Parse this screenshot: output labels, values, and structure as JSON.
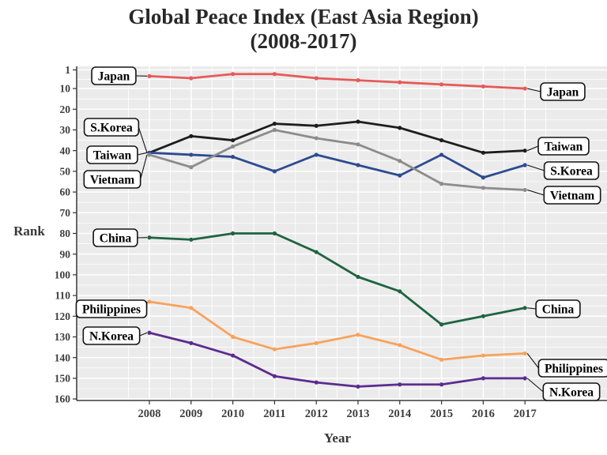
{
  "title": {
    "line1": "Global Peace Index (East Asia Region)",
    "line2": "(2008-2017)"
  },
  "axes": {
    "y_label": "Rank",
    "x_label": "Year",
    "y_ticks": [
      1,
      10,
      20,
      30,
      40,
      50,
      60,
      70,
      80,
      90,
      100,
      110,
      120,
      130,
      140,
      150,
      160
    ],
    "x_ticks": [
      2008,
      2009,
      2010,
      2011,
      2012,
      2013,
      2014,
      2015,
      2016,
      2017
    ]
  },
  "chart_data": {
    "type": "line",
    "title": "Global Peace Index (East Asia Region) (2008-2017)",
    "xlabel": "Year",
    "ylabel": "Rank",
    "x": [
      2008,
      2009,
      2010,
      2011,
      2012,
      2013,
      2014,
      2015,
      2016,
      2017
    ],
    "y_axis_reversed": true,
    "ylim": [
      1,
      160
    ],
    "grid": true,
    "legend": "direct labels in boxes at both ends of each line",
    "series": [
      {
        "name": "Japan",
        "color": "#e65a5a",
        "values": [
          4,
          5,
          3,
          3,
          5,
          6,
          7,
          8,
          9,
          10
        ]
      },
      {
        "name": "Taiwan",
        "color": "#1d1d1d",
        "values": [
          41,
          33,
          35,
          27,
          28,
          26,
          29,
          35,
          41,
          40
        ]
      },
      {
        "name": "S.Korea",
        "color": "#2d4b91",
        "values": [
          41,
          42,
          43,
          50,
          42,
          47,
          52,
          42,
          53,
          47
        ]
      },
      {
        "name": "Vietnam",
        "color": "#8c8c8c",
        "values": [
          42,
          48,
          38,
          30,
          34,
          37,
          45,
          56,
          58,
          59
        ]
      },
      {
        "name": "China",
        "color": "#1f6440",
        "values": [
          82,
          83,
          80,
          80,
          89,
          101,
          108,
          124,
          120,
          116
        ]
      },
      {
        "name": "Philippines",
        "color": "#f7a35c",
        "values": [
          113,
          116,
          130,
          136,
          133,
          129,
          134,
          141,
          139,
          138
        ]
      },
      {
        "name": "N.Korea",
        "color": "#5b2c8f",
        "values": [
          128,
          133,
          139,
          149,
          152,
          154,
          153,
          153,
          150,
          150
        ]
      }
    ]
  },
  "colors": {
    "panel_bg": "#ebebeb",
    "grid_major": "#ffffff",
    "grid_minor": "#ffffff",
    "axis_line": "#1a1a1a",
    "tick_text": "#3e3e3e",
    "title_text": "#282828",
    "label_box_bg": "#ffffff",
    "label_box_border": "#141414"
  }
}
